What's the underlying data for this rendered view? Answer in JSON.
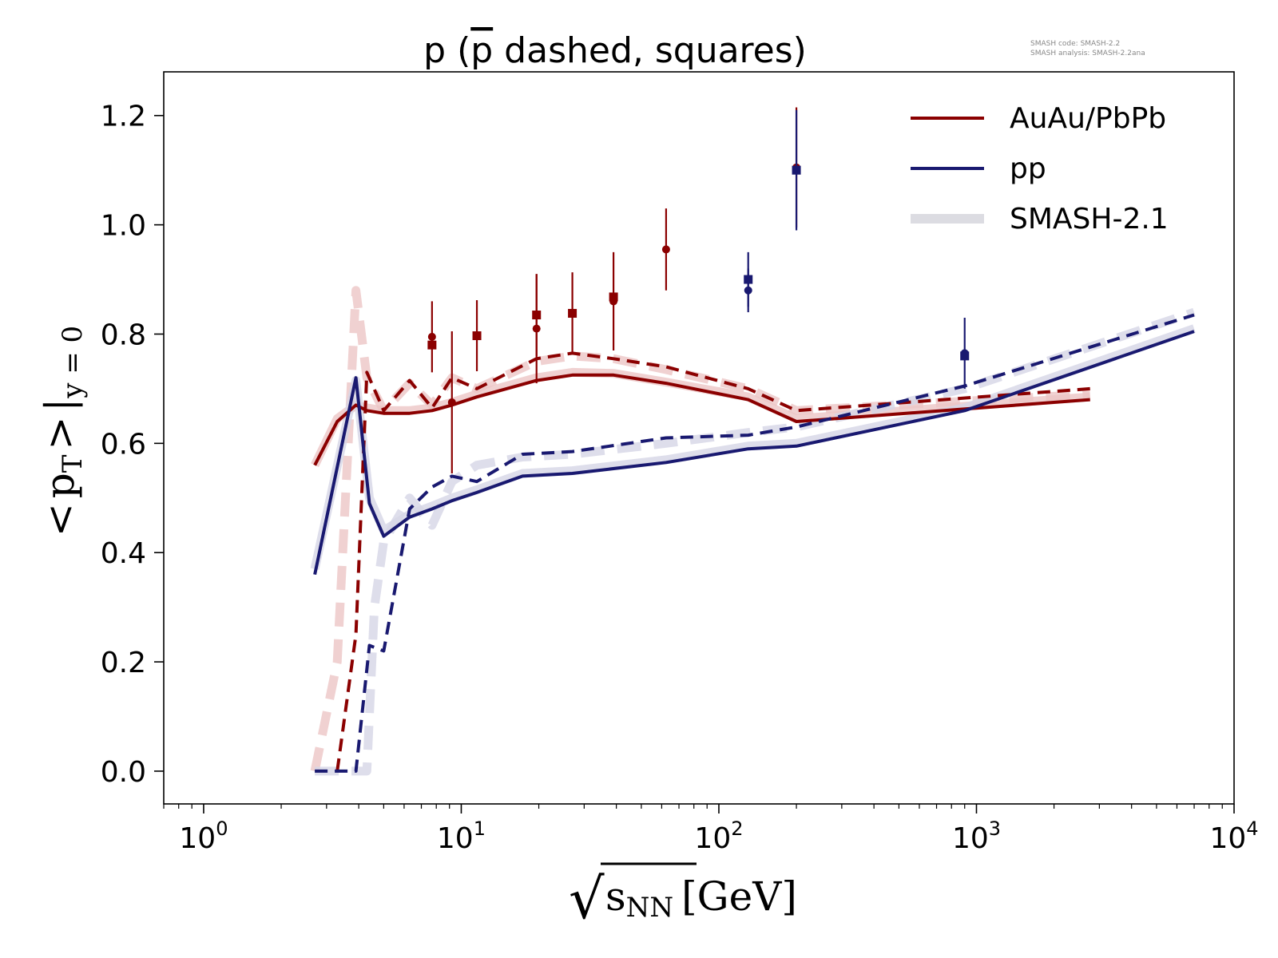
{
  "chart_data": {
    "type": "line",
    "title": "p (p̄ dashed, squares)",
    "title_parts": {
      "before": "p (",
      "pbar": "p",
      "after": " dashed, squares)"
    },
    "note_lines": [
      "SMASH code:      SMASH-2.2",
      "SMASH analysis:  SMASH-2.2ana"
    ],
    "xlabel": {
      "root_symbol": "√",
      "var": "s",
      "sub": "NN",
      "unit": "[GeV]"
    },
    "ylabel": {
      "lt": "<",
      "var": "p",
      "sub": "T",
      "gt": ">",
      "bar": "|",
      "cond": "y = 0"
    },
    "xscale": "log",
    "xlim": [
      0.7,
      10000
    ],
    "ylim": [
      -0.06,
      1.28
    ],
    "x_ticks": [
      {
        "value": 1,
        "base": "10",
        "exp": "0"
      },
      {
        "value": 10,
        "base": "10",
        "exp": "1"
      },
      {
        "value": 100,
        "base": "10",
        "exp": "2"
      },
      {
        "value": 1000,
        "base": "10",
        "exp": "3"
      },
      {
        "value": 10000,
        "base": "10",
        "exp": "4"
      }
    ],
    "y_ticks": [
      {
        "value": 0.0,
        "label": "0.0"
      },
      {
        "value": 0.2,
        "label": "0.2"
      },
      {
        "value": 0.4,
        "label": "0.4"
      },
      {
        "value": 0.6,
        "label": "0.6"
      },
      {
        "value": 0.8,
        "label": "0.8"
      },
      {
        "value": 1.0,
        "label": "1.0"
      },
      {
        "value": 1.2,
        "label": "1.2"
      }
    ],
    "grid": false,
    "legend": {
      "position": "top-right",
      "entries": [
        {
          "label": "AuAu/PbPb",
          "color": "#8b0000"
        },
        {
          "label": "pp",
          "color": "#191970"
        },
        {
          "label": "SMASH-2.1",
          "color": "#dcdce2"
        }
      ]
    },
    "colors": {
      "auau": "#8b0000",
      "pp": "#191970",
      "auau_ref": "#ecc6c6",
      "pp_ref": "#d6d6e6"
    },
    "series": [
      {
        "group": "AuAu/PbPb",
        "particle": "p",
        "style": "solid",
        "color": "#8b0000",
        "x": [
          2.7,
          3.3,
          3.9,
          4.3,
          5.0,
          6.3,
          7.7,
          9.2,
          11.5,
          19.6,
          27,
          39,
          62.4,
          130,
          200,
          2760
        ],
        "y": [
          0.56,
          0.64,
          0.67,
          0.66,
          0.655,
          0.655,
          0.66,
          0.67,
          0.685,
          0.715,
          0.725,
          0.725,
          0.71,
          0.68,
          0.64,
          0.68
        ]
      },
      {
        "group": "AuAu/PbPb",
        "particle": "p̄",
        "style": "dashed",
        "color": "#8b0000",
        "x": [
          3.3,
          3.9,
          4.3,
          5.0,
          6.3,
          7.7,
          9.2,
          11.5,
          19.6,
          27,
          39,
          62.4,
          130,
          200,
          2760
        ],
        "y": [
          0.0,
          0.25,
          0.73,
          0.66,
          0.715,
          0.665,
          0.72,
          0.7,
          0.755,
          0.765,
          0.755,
          0.74,
          0.7,
          0.66,
          0.7
        ]
      },
      {
        "group": "pp",
        "particle": "p",
        "style": "solid",
        "color": "#191970",
        "x": [
          2.7,
          3.9,
          4.4,
          5.0,
          6.3,
          7.7,
          9.2,
          11.5,
          17.3,
          27,
          62.4,
          130,
          200,
          900,
          7000
        ],
        "y": [
          0.36,
          0.72,
          0.49,
          0.43,
          0.465,
          0.48,
          0.495,
          0.51,
          0.54,
          0.545,
          0.565,
          0.59,
          0.595,
          0.66,
          0.805
        ]
      },
      {
        "group": "pp",
        "particle": "p̄",
        "style": "dashed",
        "color": "#191970",
        "x": [
          2.7,
          3.9,
          4.4,
          5.0,
          6.3,
          7.7,
          9.2,
          11.5,
          17.3,
          27,
          62.4,
          130,
          200,
          900,
          7000
        ],
        "y": [
          0.0,
          0.0,
          0.23,
          0.22,
          0.48,
          0.52,
          0.54,
          0.53,
          0.58,
          0.585,
          0.61,
          0.615,
          0.63,
          0.705,
          0.835
        ]
      },
      {
        "group": "SMASH-2.1",
        "particle": "p",
        "style": "solid",
        "color": "#ecc6c6",
        "x": [
          2.7,
          3.3,
          3.9,
          4.3,
          5.0,
          6.3,
          7.7,
          9.2,
          11.5,
          19.6,
          27,
          39,
          62.4,
          130,
          200,
          2760
        ],
        "y": [
          0.56,
          0.645,
          0.67,
          0.665,
          0.66,
          0.66,
          0.665,
          0.675,
          0.69,
          0.72,
          0.73,
          0.728,
          0.712,
          0.685,
          0.645,
          0.685
        ]
      },
      {
        "group": "SMASH-2.1",
        "particle": "p̄",
        "style": "dashed",
        "color": "#ecc6c6",
        "x": [
          2.7,
          3.3,
          3.9,
          4.3,
          5.0,
          6.3,
          7.7,
          9.2,
          11.5,
          19.6,
          27,
          39,
          62.4,
          130,
          200,
          2760
        ],
        "y": [
          0.0,
          0.2,
          0.88,
          0.72,
          0.66,
          0.71,
          0.67,
          0.72,
          0.7,
          0.75,
          0.76,
          0.755,
          0.735,
          0.7,
          0.66,
          0.69
        ]
      },
      {
        "group": "SMASH-2.1",
        "particle": "p",
        "style": "solid",
        "color": "#d6d6e6",
        "x": [
          2.7,
          3.9,
          4.4,
          5.0,
          6.3,
          7.7,
          9.2,
          11.5,
          17.3,
          27,
          62.4,
          130,
          200,
          900,
          7000
        ],
        "y": [
          0.37,
          0.715,
          0.5,
          0.44,
          0.47,
          0.485,
          0.5,
          0.515,
          0.545,
          0.55,
          0.57,
          0.595,
          0.6,
          0.665,
          0.81
        ]
      },
      {
        "group": "SMASH-2.1",
        "particle": "p̄",
        "style": "dashed",
        "color": "#d6d6e6",
        "x": [
          2.7,
          3.9,
          4.3,
          4.6,
          5.0,
          6.3,
          7.7,
          9.2,
          11.5,
          17.3,
          27,
          62.4,
          130,
          200,
          900,
          7000
        ],
        "y": [
          0.0,
          0.0,
          0.0,
          0.3,
          0.42,
          0.5,
          0.45,
          0.53,
          0.56,
          0.575,
          0.58,
          0.6,
          0.62,
          0.63,
          0.7,
          0.84
        ]
      }
    ],
    "measurements": [
      {
        "group": "AuAu/PbPb",
        "particle": "p",
        "marker": "circle",
        "color": "#8b0000",
        "points": [
          {
            "x": 7.7,
            "y": 0.795,
            "err": 0.065
          },
          {
            "x": 9.2,
            "y": 0.675,
            "err": 0.13
          },
          {
            "x": 19.6,
            "y": 0.81,
            "err": 0.1
          },
          {
            "x": 39,
            "y": 0.86,
            "err": 0.09
          },
          {
            "x": 62.4,
            "y": 0.955,
            "err": 0.075
          },
          {
            "x": 200,
            "y": 1.105,
            "err": 0.11
          }
        ]
      },
      {
        "group": "AuAu/PbPb",
        "particle": "p̄",
        "marker": "square",
        "color": "#8b0000",
        "points": [
          {
            "x": 7.7,
            "y": 0.78,
            "err": 0.0
          },
          {
            "x": 11.5,
            "y": 0.797,
            "err": 0.065
          },
          {
            "x": 19.6,
            "y": 0.835,
            "err": 0.075
          },
          {
            "x": 27,
            "y": 0.838,
            "err": 0.075
          },
          {
            "x": 39,
            "y": 0.868,
            "err": 0.0
          }
        ]
      },
      {
        "group": "pp",
        "particle": "p",
        "marker": "circle",
        "color": "#191970",
        "points": [
          {
            "x": 130,
            "y": 0.88,
            "err": 0.04
          },
          {
            "x": 200,
            "y": 1.1,
            "err": 0.11
          },
          {
            "x": 900,
            "y": 0.765,
            "err": 0.065
          }
        ]
      },
      {
        "group": "pp",
        "particle": "p̄",
        "marker": "square",
        "color": "#191970",
        "points": [
          {
            "x": 130,
            "y": 0.9,
            "err": 0.05
          },
          {
            "x": 200,
            "y": 1.1,
            "err": 0.0
          },
          {
            "x": 900,
            "y": 0.76,
            "err": 0.0
          }
        ]
      }
    ]
  }
}
